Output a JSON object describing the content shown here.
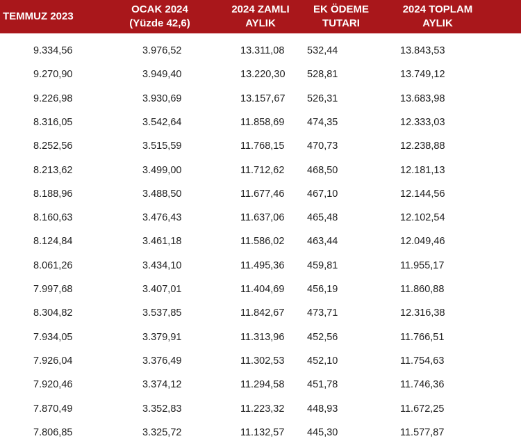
{
  "table": {
    "headers": [
      [
        "TEMMUZ 2023"
      ],
      [
        "OCAK 2024",
        "(Yüzde 42,6)"
      ],
      [
        "2024 ZAMLI",
        "AYLIK"
      ],
      [
        "EK ÖDEME",
        "TUTARI"
      ],
      [
        "2024 TOPLAM",
        "AYLIK"
      ]
    ],
    "rows": [
      [
        "9.334,56",
        "3.976,52",
        "13.311,08",
        "532,44",
        "13.843,53"
      ],
      [
        "9.270,90",
        "3.949,40",
        "13.220,30",
        "528,81",
        "13.749,12"
      ],
      [
        "9.226,98",
        "3.930,69",
        "13.157,67",
        "526,31",
        "13.683,98"
      ],
      [
        "8.316,05",
        "3.542,64",
        "11.858,69",
        "474,35",
        "12.333,03"
      ],
      [
        "8.252,56",
        "3.515,59",
        "11.768,15",
        "470,73",
        "12.238,88"
      ],
      [
        "8.213,62",
        "3.499,00",
        "11.712,62",
        "468,50",
        "12.181,13"
      ],
      [
        "8.188,96",
        "3.488,50",
        "11.677,46",
        "467,10",
        "12.144,56"
      ],
      [
        "8.160,63",
        "3.476,43",
        "11.637,06",
        "465,48",
        "12.102,54"
      ],
      [
        "8.124,84",
        "3.461,18",
        "11.586,02",
        "463,44",
        "12.049,46"
      ],
      [
        "8.061,26",
        "3.434,10",
        "11.495,36",
        "459,81",
        "11.955,17"
      ],
      [
        "7.997,68",
        "3.407,01",
        "11.404,69",
        "456,19",
        "11.860,88"
      ],
      [
        "8.304,82",
        "3.537,85",
        "11.842,67",
        "473,71",
        "12.316,38"
      ],
      [
        "7.934,05",
        "3.379,91",
        "11.313,96",
        "452,56",
        "11.766,51"
      ],
      [
        "7.926,04",
        "3.376,49",
        "11.302,53",
        "452,10",
        "11.754,63"
      ],
      [
        "7.920,46",
        "3.374,12",
        "11.294,58",
        "451,78",
        "11.746,36"
      ],
      [
        "7.870,49",
        "3.352,83",
        "11.223,32",
        "448,93",
        "11.672,25"
      ],
      [
        "7.806,85",
        "3.325,72",
        "11.132,57",
        "445,30",
        "11.577,87"
      ]
    ]
  },
  "colors": {
    "header_background": "#a9171b",
    "header_text": "#ffffff",
    "body_text": "#1f1f1f",
    "background": "#ffffff"
  }
}
